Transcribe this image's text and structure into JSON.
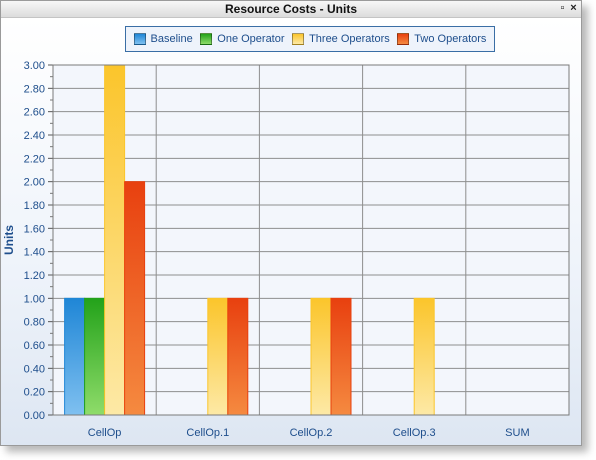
{
  "window": {
    "title": "Resource Costs - Units",
    "restore_icon": "restore-icon",
    "close_icon": "close-icon",
    "restore_glyph": "▫",
    "close_glyph": "×"
  },
  "colors": {
    "Baseline": [
      "#1f86d6",
      "#7fc0f0"
    ],
    "One Operator": [
      "#23a21a",
      "#8fdc6a"
    ],
    "Three Operators": [
      "#fbc52b",
      "#fde9a6"
    ],
    "Two Operators": [
      "#e8400f",
      "#f58a40"
    ],
    "axis_text": "#1e4e8c"
  },
  "chart_data": {
    "type": "bar",
    "title": "Resource Costs - Units",
    "xlabel": "",
    "ylabel": "Units",
    "ylim": [
      0,
      3.0
    ],
    "y_major_step": 0.2,
    "y_tick_labels": [
      "0.00",
      "0.20",
      "0.40",
      "0.60",
      "0.80",
      "1.00",
      "1.20",
      "1.40",
      "1.60",
      "1.80",
      "2.00",
      "2.20",
      "2.40",
      "2.60",
      "2.80",
      "3.00"
    ],
    "categories": [
      "CellOp",
      "CellOp.1",
      "CellOp.2",
      "CellOp.3",
      "SUM"
    ],
    "series": [
      {
        "name": "Baseline",
        "values": [
          1.0,
          0,
          0,
          0,
          0
        ]
      },
      {
        "name": "One Operator",
        "values": [
          1.0,
          0,
          0,
          0,
          0
        ]
      },
      {
        "name": "Three Operators",
        "values": [
          3.0,
          1.0,
          1.0,
          1.0,
          0
        ]
      },
      {
        "name": "Two Operators",
        "values": [
          2.0,
          1.0,
          1.0,
          0,
          0
        ]
      }
    ],
    "grid": true,
    "legend_position": "top"
  }
}
